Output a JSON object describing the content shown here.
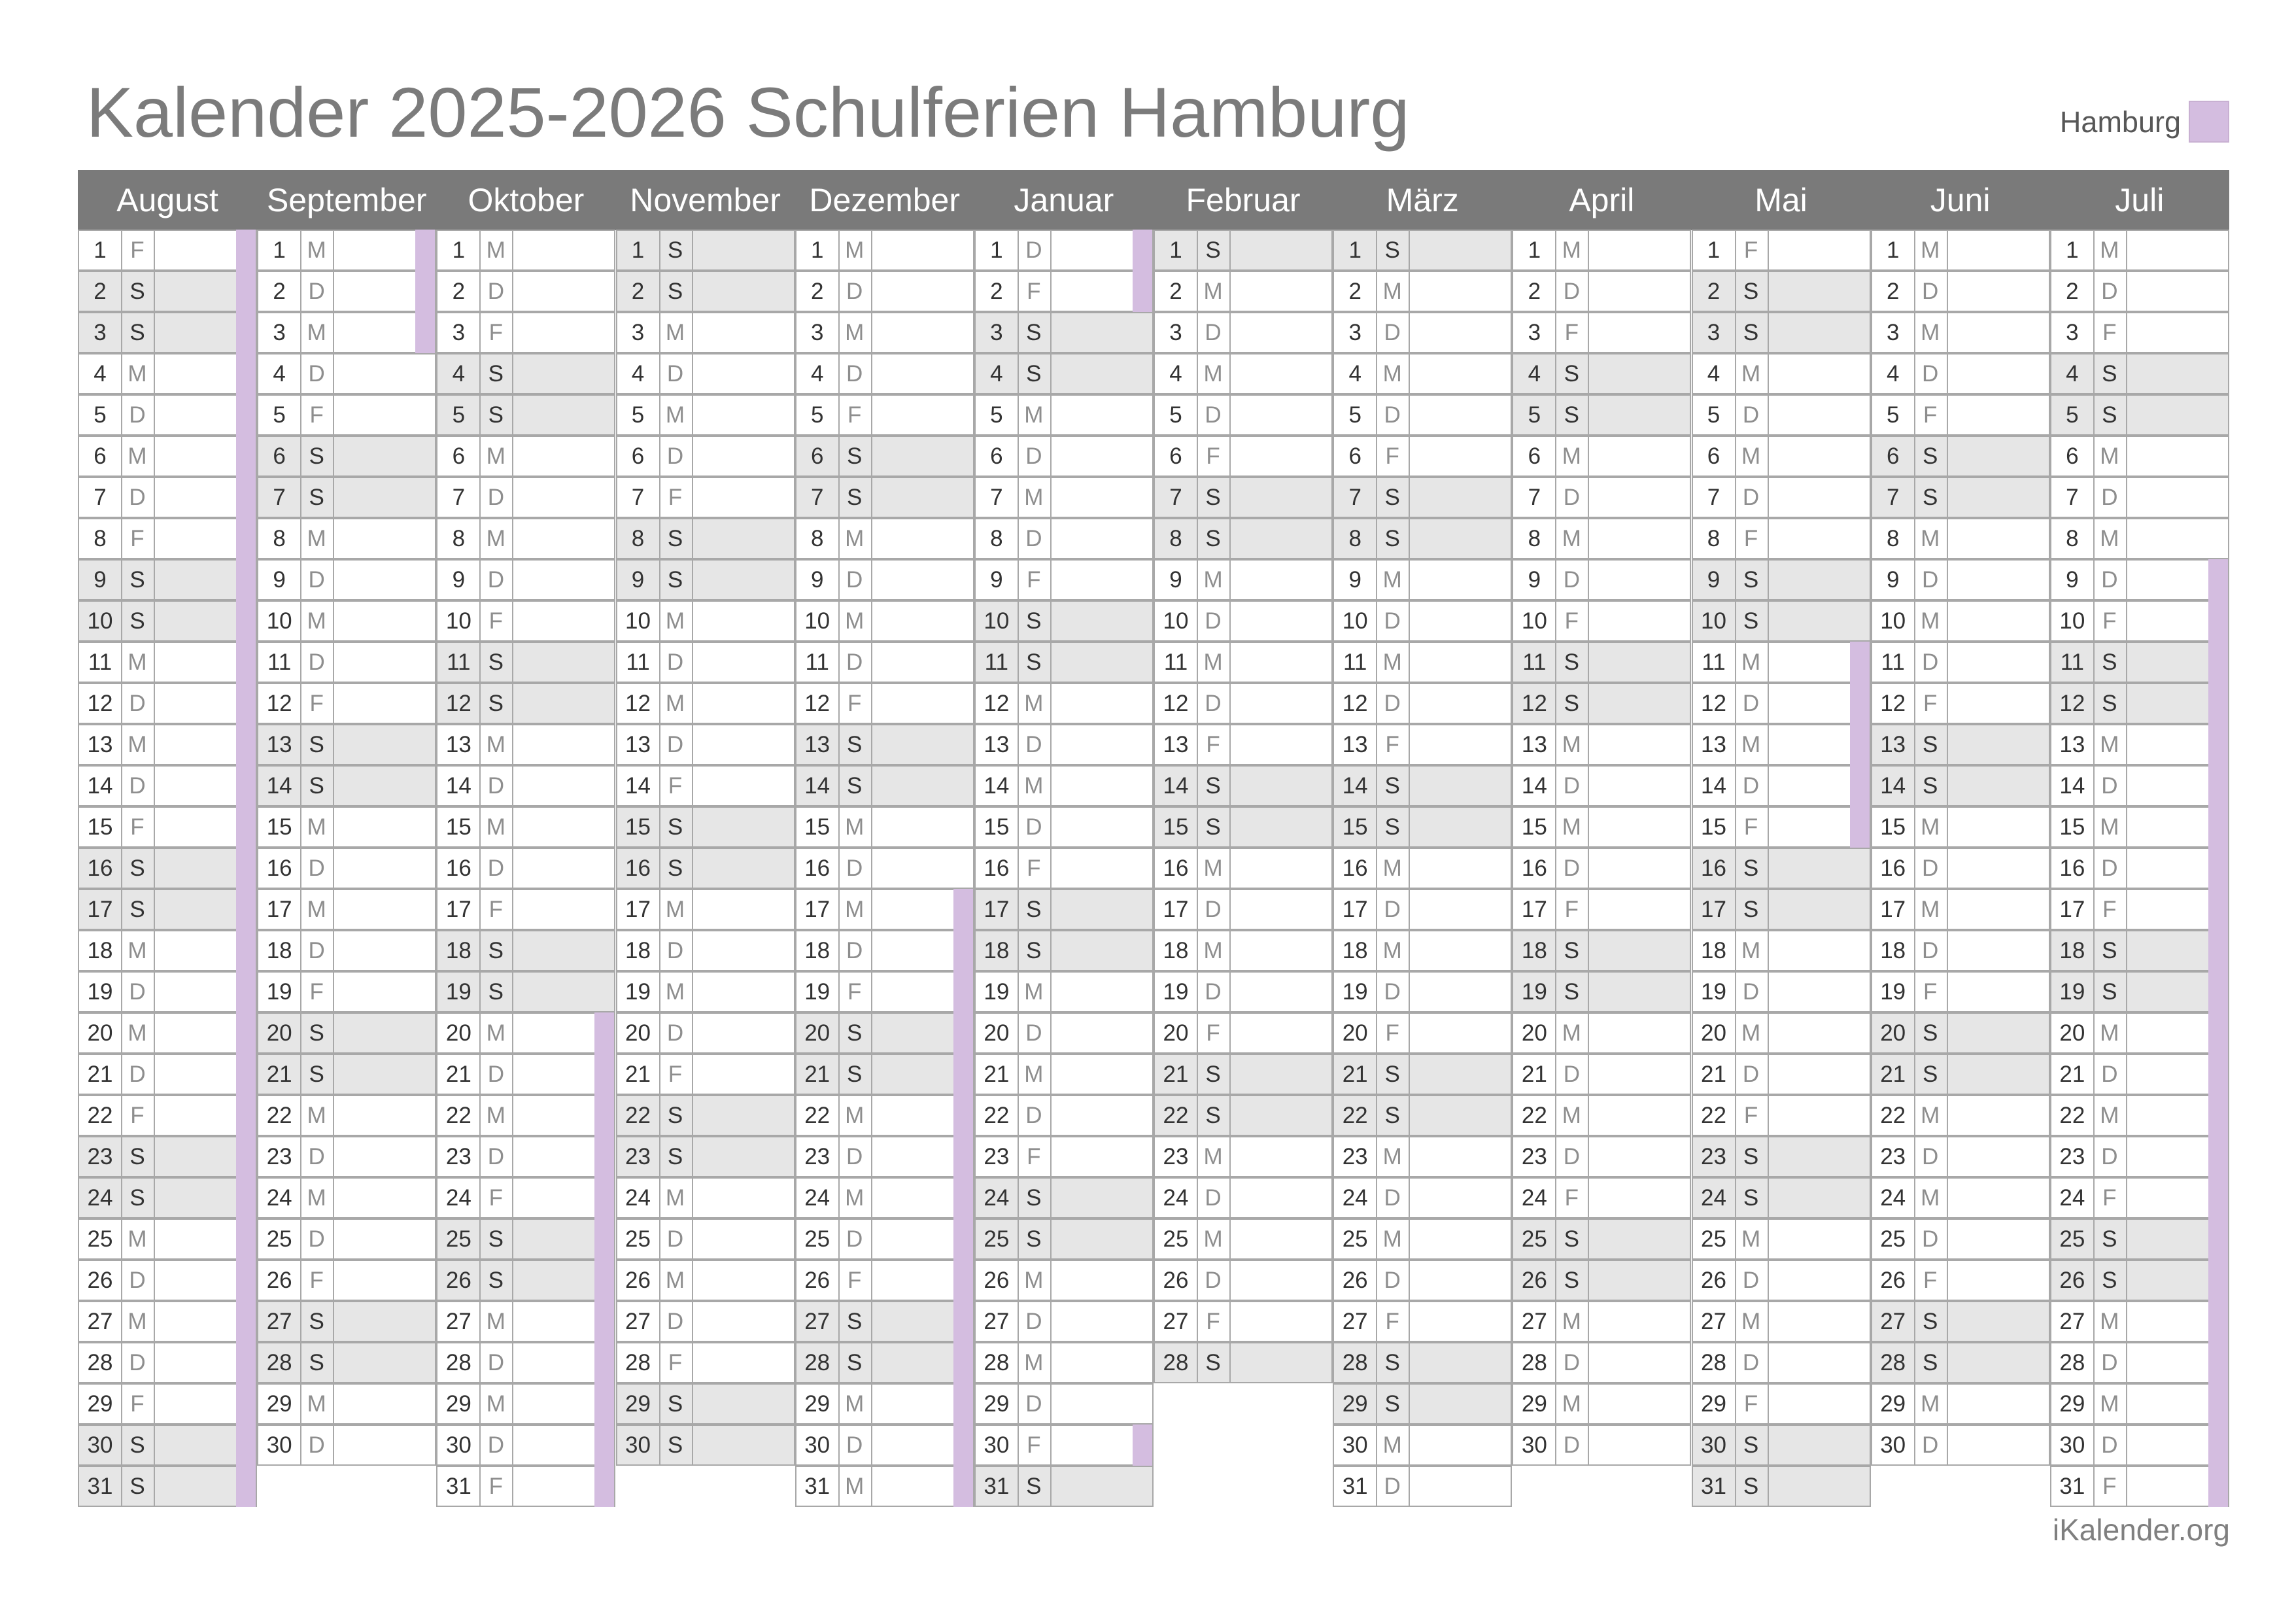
{
  "title": "Kalender 2025-2026 Schulferien Hamburg",
  "legend": {
    "label": "Hamburg",
    "color": "#d4bde0"
  },
  "footer": "iKalender.org",
  "colors": {
    "holiday": "#d4bde0",
    "weekend": "#e6e6e6",
    "header": "#7a7a7a"
  },
  "months": [
    {
      "name": "August",
      "year": 2025,
      "month": 8,
      "days": 31,
      "holidays": [
        [
          1,
          31
        ]
      ]
    },
    {
      "name": "September",
      "year": 2025,
      "month": 9,
      "days": 30,
      "holidays": [
        [
          1,
          3
        ]
      ]
    },
    {
      "name": "Oktober",
      "year": 2025,
      "month": 10,
      "days": 31,
      "holidays": [
        [
          20,
          31
        ]
      ]
    },
    {
      "name": "November",
      "year": 2025,
      "month": 11,
      "days": 30,
      "holidays": []
    },
    {
      "name": "Dezember",
      "year": 2025,
      "month": 12,
      "days": 31,
      "holidays": [
        [
          17,
          31
        ]
      ]
    },
    {
      "name": "Januar",
      "year": 2026,
      "month": 1,
      "days": 31,
      "holidays": [
        [
          1,
          2
        ],
        [
          30,
          30
        ]
      ]
    },
    {
      "name": "Februar",
      "year": 2026,
      "month": 2,
      "days": 28,
      "holidays": []
    },
    {
      "name": "März",
      "year": 2026,
      "month": 3,
      "days": 31,
      "holidays": []
    },
    {
      "name": "April",
      "year": 2026,
      "month": 4,
      "days": 30,
      "holidays": []
    },
    {
      "name": "Mai",
      "year": 2026,
      "month": 5,
      "days": 31,
      "holidays": [
        [
          11,
          15
        ]
      ]
    },
    {
      "name": "Juni",
      "year": 2026,
      "month": 6,
      "days": 30,
      "holidays": []
    },
    {
      "name": "Juli",
      "year": 2026,
      "month": 7,
      "days": 31,
      "holidays": [
        [
          9,
          31
        ]
      ]
    }
  ],
  "weekday_letters": [
    "S",
    "M",
    "D",
    "M",
    "D",
    "F",
    "S"
  ],
  "holiday_weekday_bold": true
}
